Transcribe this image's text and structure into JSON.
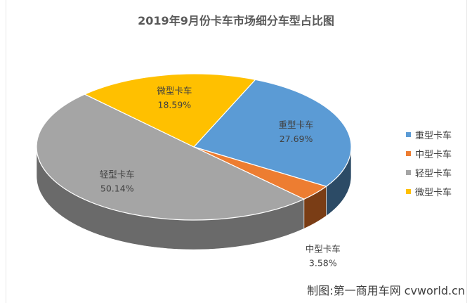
{
  "chart_data": {
    "type": "pie",
    "title": "2019年9月份卡车市场细分车型占比图",
    "categories": [
      "重型卡车",
      "中型卡车",
      "轻型卡车",
      "微型卡车"
    ],
    "values": [
      27.69,
      3.58,
      50.14,
      18.59
    ],
    "value_labels": [
      "27.69%",
      "3.58%",
      "50.14%",
      "18.59%"
    ],
    "colors": [
      "#5B9BD5",
      "#ED7D31",
      "#A5A5A5",
      "#FFC000"
    ],
    "side_colors": [
      "#2C4B66",
      "#7A3D15",
      "#6A6A6A",
      "#B38700"
    ],
    "style": "3d",
    "legend_position": "right"
  },
  "credit": "制图:第一商用车网 cvworld.cn"
}
